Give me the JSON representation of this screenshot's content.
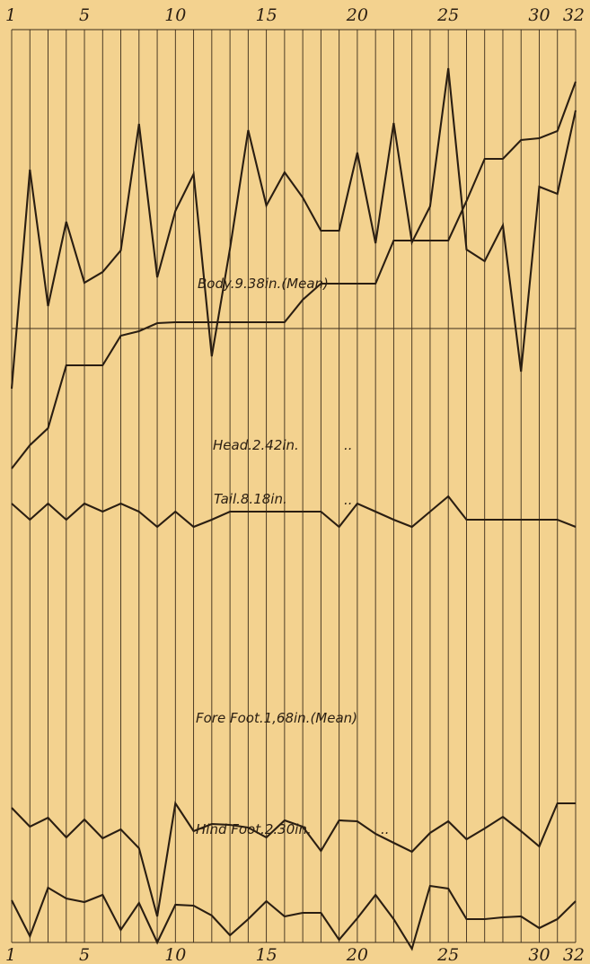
{
  "chart_data": {
    "type": "line",
    "x": [
      1,
      2,
      3,
      4,
      5,
      6,
      7,
      8,
      9,
      10,
      11,
      12,
      13,
      14,
      15,
      16,
      17,
      18,
      19,
      20,
      21,
      22,
      23,
      24,
      25,
      26,
      27,
      28,
      29,
      30,
      31,
      32
    ],
    "x_tick_labels": [
      "1",
      "5",
      "10",
      "15",
      "20",
      "25",
      "30",
      "32"
    ],
    "x_tick_values": [
      1,
      5,
      10,
      15,
      20,
      25,
      30,
      32
    ],
    "grid": true,
    "legend": "none",
    "reference_line": "horizontal",
    "series": [
      {
        "name": "Body",
        "label": "Body.9.38in.(Mean)",
        "values": [
          0,
          26,
          45,
          115,
          115,
          115,
          148,
          153,
          162,
          163,
          163,
          163,
          163,
          163,
          163,
          163,
          188,
          206,
          206,
          206,
          206,
          254,
          254,
          254,
          254,
          298,
          345,
          345,
          366,
          368,
          376,
          431
        ]
      },
      {
        "name": "Head",
        "label": "Head.2.42in.",
        "dots": "..",
        "values": [
          -8,
          -26,
          -8,
          -26,
          -8,
          -17,
          -8,
          -17,
          -34,
          -17,
          -34,
          -26,
          -17,
          -17,
          -17,
          -17,
          -17,
          -17,
          -34,
          -8,
          -17,
          -26,
          -34,
          -17,
          0,
          -26,
          -26,
          -26,
          -26,
          -26,
          -26,
          -34
        ]
      },
      {
        "name": "Tail",
        "label": "Tail.8.18in.",
        "dots": "..",
        "values": [
          120,
          364,
          212,
          306,
          238,
          250,
          274,
          415,
          244,
          318,
          359,
          156,
          276,
          408,
          324,
          361,
          333,
          296,
          296,
          383,
          282,
          416,
          283,
          323,
          477,
          275,
          262,
          302,
          139,
          345,
          337,
          430
        ]
      },
      {
        "name": "Fore Foot",
        "label": "Fore Foot.1,68in.(Mean)",
        "values": [
          -5,
          -26,
          -16,
          -38,
          -18,
          -39,
          -29,
          -50,
          -126,
          0,
          -31,
          -23,
          -24,
          -27,
          -38,
          -19,
          -26,
          -53,
          -19,
          -20,
          -34,
          -44,
          -54,
          -33,
          -20,
          -40,
          -28,
          -15,
          -31,
          -48,
          0,
          0
        ]
      },
      {
        "name": "Hind Foot",
        "label": "Hind Foot.2.30in.",
        "dots": "..",
        "values": [
          -20,
          -60,
          -6,
          -18,
          -22,
          -14,
          -53,
          -23,
          -67,
          -25,
          -26,
          -37,
          -59,
          -41,
          -21,
          -38,
          -34,
          -34,
          -64,
          -40,
          -14,
          -41,
          -74,
          -4,
          -7,
          -41,
          -41,
          -39,
          -38,
          -51,
          -41,
          -21
        ]
      }
    ]
  }
}
